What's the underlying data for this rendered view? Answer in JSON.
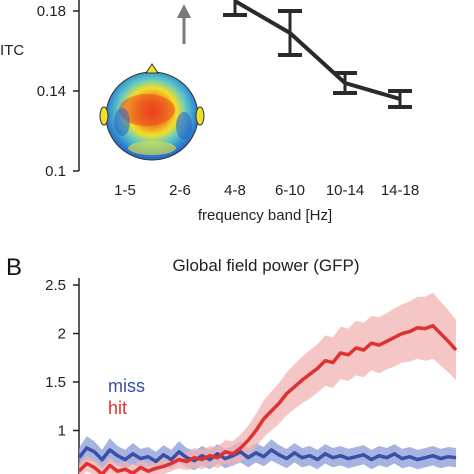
{
  "chart_data": [
    {
      "type": "line",
      "panel_letter": "",
      "ylabel": "ITC",
      "xlabel": "frequency band [Hz]",
      "categories": [
        "1-5",
        "2-6",
        "4-8",
        "6-10",
        "10-14",
        "14-18"
      ],
      "yticks": [
        "0.1",
        "0.14",
        "0.18"
      ],
      "ylim": [
        0.1,
        0.19
      ],
      "series": [
        {
          "values": [
            null,
            null,
            0.185,
            0.169,
            0.144,
            0.136
          ],
          "errors": [
            null,
            null,
            0.007,
            0.011,
            0.005,
            0.004
          ],
          "color": "#2a2a2a"
        }
      ],
      "arrow_at_category": "2-6",
      "arrow_color": "#7a7a7a",
      "inset": "scalp topography map"
    },
    {
      "type": "line",
      "panel_letter": "B",
      "title": "Global field power (GFP)",
      "yticks": [
        "1",
        "1.5",
        "2",
        "2.5"
      ],
      "ylim": [
        0.5,
        2.5
      ],
      "legend_position": "left",
      "series": [
        {
          "name": "miss",
          "color": "#3a4fa8",
          "band_color": "#8a9ad6",
          "values": [
            0.72,
            0.82,
            0.78,
            0.7,
            0.8,
            0.74,
            0.7,
            0.76,
            0.71,
            0.73,
            0.68,
            0.75,
            0.7,
            0.78,
            0.72,
            0.69,
            0.74,
            0.7,
            0.76,
            0.71,
            0.74,
            0.78,
            0.72,
            0.77,
            0.73,
            0.8,
            0.75,
            0.71,
            0.77,
            0.72,
            0.74,
            0.7,
            0.76,
            0.72,
            0.74,
            0.71,
            0.73,
            0.75,
            0.7,
            0.74,
            0.72,
            0.76,
            0.71,
            0.73,
            0.7,
            0.72,
            0.74,
            0.71,
            0.73,
            0.72
          ],
          "band": [
            0.1,
            0.12,
            0.11,
            0.1,
            0.12,
            0.1,
            0.1,
            0.11,
            0.1,
            0.1,
            0.1,
            0.1,
            0.1,
            0.11,
            0.1,
            0.1,
            0.1,
            0.1,
            0.1,
            0.1,
            0.1,
            0.11,
            0.1,
            0.1,
            0.1,
            0.11,
            0.1,
            0.1,
            0.1,
            0.1,
            0.1,
            0.1,
            0.1,
            0.1,
            0.1,
            0.1,
            0.1,
            0.1,
            0.1,
            0.1,
            0.1,
            0.1,
            0.1,
            0.1,
            0.1,
            0.1,
            0.1,
            0.1,
            0.1,
            0.1
          ]
        },
        {
          "name": "hit",
          "color": "#e03030",
          "band_color": "#f2b3b3",
          "values": [
            0.58,
            0.66,
            0.62,
            0.55,
            0.64,
            0.58,
            0.6,
            0.56,
            0.62,
            0.58,
            0.61,
            0.63,
            0.66,
            0.7,
            0.68,
            0.72,
            0.7,
            0.74,
            0.72,
            0.78,
            0.76,
            0.82,
            0.9,
            1.0,
            1.12,
            1.2,
            1.28,
            1.38,
            1.45,
            1.52,
            1.58,
            1.64,
            1.72,
            1.7,
            1.8,
            1.78,
            1.85,
            1.83,
            1.9,
            1.88,
            1.92,
            1.96,
            2.0,
            2.02,
            2.06,
            2.05,
            2.08,
            2.0,
            1.92,
            1.83
          ],
          "band": [
            0.08,
            0.08,
            0.08,
            0.08,
            0.08,
            0.08,
            0.08,
            0.08,
            0.08,
            0.08,
            0.08,
            0.08,
            0.08,
            0.09,
            0.09,
            0.1,
            0.1,
            0.1,
            0.11,
            0.12,
            0.13,
            0.14,
            0.15,
            0.17,
            0.19,
            0.2,
            0.21,
            0.22,
            0.23,
            0.24,
            0.25,
            0.25,
            0.26,
            0.26,
            0.27,
            0.27,
            0.28,
            0.28,
            0.28,
            0.29,
            0.29,
            0.3,
            0.3,
            0.31,
            0.32,
            0.33,
            0.34,
            0.33,
            0.32,
            0.31
          ]
        }
      ]
    }
  ]
}
